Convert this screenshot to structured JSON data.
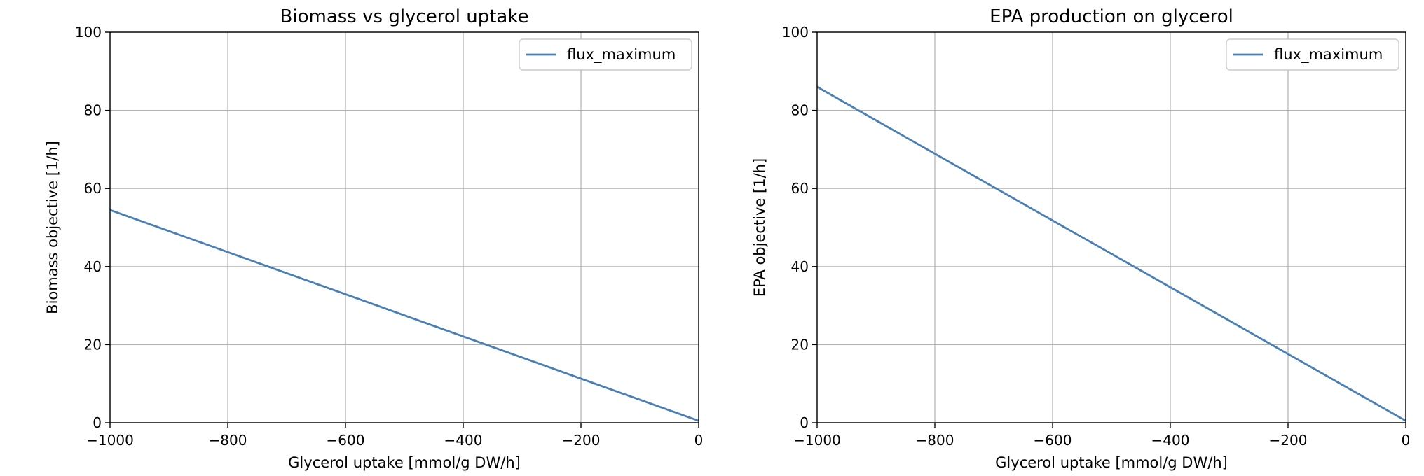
{
  "chart_data": [
    {
      "type": "line",
      "title": "Biomass vs glycerol uptake",
      "xlabel": "Glycerol uptake [mmol/g DW/h]",
      "ylabel": "Biomass objective [1/h]",
      "xlim": [
        -1000,
        0
      ],
      "ylim": [
        0,
        100
      ],
      "xticks": [
        -1000,
        -800,
        -600,
        -400,
        -200,
        0
      ],
      "xtick_labels": [
        "−1000",
        "−800",
        "−600",
        "−400",
        "−200",
        "0"
      ],
      "yticks": [
        0,
        20,
        40,
        60,
        80,
        100
      ],
      "ytick_labels": [
        "0",
        "20",
        "40",
        "60",
        "80",
        "100"
      ],
      "grid": true,
      "legend": "top-right",
      "series": [
        {
          "name": "flux_maximum",
          "color": "#4a7fb5",
          "x": [
            -1000,
            0
          ],
          "y": [
            54.5,
            0.5
          ]
        }
      ]
    },
    {
      "type": "line",
      "title": "EPA production on glycerol",
      "xlabel": "Glycerol uptake [mmol/g DW/h]",
      "ylabel": "EPA objective [1/h]",
      "xlim": [
        -1000,
        0
      ],
      "ylim": [
        0,
        100
      ],
      "xticks": [
        -1000,
        -800,
        -600,
        -400,
        -200,
        0
      ],
      "xtick_labels": [
        "−1000",
        "−800",
        "−600",
        "−400",
        "−200",
        "0"
      ],
      "yticks": [
        0,
        20,
        40,
        60,
        80,
        100
      ],
      "ytick_labels": [
        "0",
        "20",
        "40",
        "60",
        "80",
        "100"
      ],
      "grid": true,
      "legend": "top-right",
      "series": [
        {
          "name": "flux_maximum",
          "color": "#4a7fb5",
          "x": [
            -1000,
            0
          ],
          "y": [
            86,
            0.5
          ]
        }
      ]
    }
  ]
}
